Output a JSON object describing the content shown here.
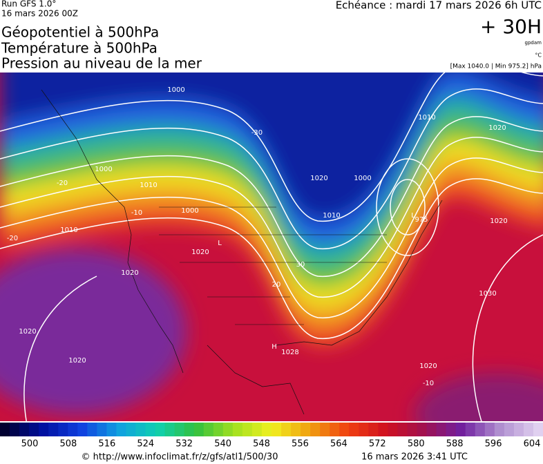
{
  "header": {
    "run": "Run GFS 1.0°",
    "run_date": "16 mars 2026 00Z",
    "titles": [
      "Géopotentiel à 500hPa",
      "Température à 500hPa",
      "Pression au niveau de la mer"
    ],
    "echeance": "Echéance : mardi 17 mars 2026 6h UTC",
    "lead": "+ 30H",
    "unit": "gpdam",
    "temp_unit": "°C",
    "range": "[Max 1040.0 | Min 975.2] hPa"
  },
  "map": {
    "labels": [
      "1000",
      "1000",
      "1010",
      "1010",
      "1020",
      "1020",
      "1020",
      "1000",
      "1020",
      "1020",
      "1000",
      "1010",
      "1010",
      "1020",
      "1020",
      "1030",
      "1020",
      "L",
      "975",
      "L",
      "H",
      "1028",
      "-20",
      "-10",
      "-30",
      "-20",
      "-10",
      "20",
      "30"
    ]
  },
  "colorbar": {
    "ticks": [
      500,
      508,
      516,
      524,
      532,
      540,
      548,
      556,
      564,
      572,
      580,
      588,
      596,
      604
    ]
  },
  "footer": {
    "url": "© http://www.infoclimat.fr/z/gfs/atl1/500/30",
    "time": "16 mars 2026  3:41 UTC"
  }
}
